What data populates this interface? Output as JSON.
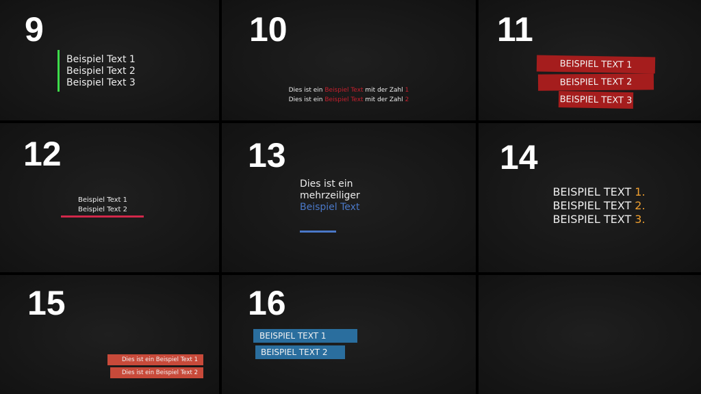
{
  "panels": [
    {
      "number": "9",
      "lines": [
        "Beispiel Text 1",
        "Beispiel Text 2",
        "Beispiel Text 3"
      ],
      "accent": "#3ddc4a"
    },
    {
      "number": "10",
      "lines": [
        {
          "pre": "Dies ist ein ",
          "hl": "Beispiel Text",
          "mid": " mit der Zahl ",
          "n": "1"
        },
        {
          "pre": "Dies ist ein ",
          "hl": "Beispiel Text",
          "mid": " mit der Zahl ",
          "n": "2"
        }
      ],
      "accent": "#c8202e"
    },
    {
      "number": "11",
      "lines": [
        "BEISPIEL TEXT 1",
        "BEISPIEL TEXT 2",
        "BEISPIEL TEXT 3"
      ],
      "accent": "#a51d1d"
    },
    {
      "number": "12",
      "lines": [
        "Beispiel Text 1",
        "Beispiel Text 2"
      ],
      "accent": "#d2284a"
    },
    {
      "number": "13",
      "lines": [
        "Dies ist ein",
        "mehrzeiliger",
        "Beispiel Text"
      ],
      "accent": "#4a78c8"
    },
    {
      "number": "14",
      "lines": [
        {
          "text": "BEISPIEL TEXT ",
          "n": "1."
        },
        {
          "text": "BEISPIEL TEXT ",
          "n": "2."
        },
        {
          "text": "BEISPIEL TEXT ",
          "n": "3."
        }
      ],
      "accent": "#f0a030"
    },
    {
      "number": "15",
      "lines": [
        "Dies ist ein Beispiel Text 1",
        "Dies ist ein Beispiel Text 2"
      ],
      "accent": "#c84a3a"
    },
    {
      "number": "16",
      "lines": [
        "BEISPIEL TEXT 1",
        "BEISPIEL TEXT 2"
      ],
      "accent": "#2a6e9e"
    }
  ]
}
